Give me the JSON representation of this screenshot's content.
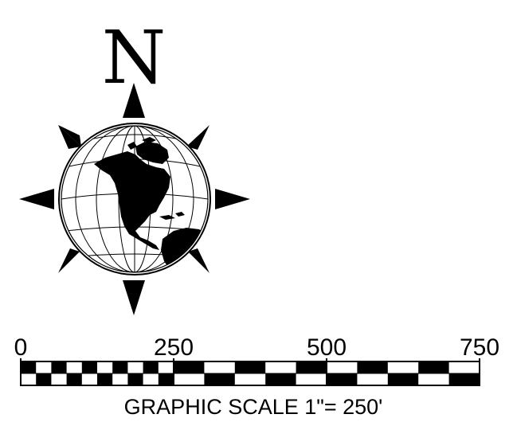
{
  "compass": {
    "north_label": "N",
    "icon": "compass-rose-globe-icon",
    "colors": {
      "ink": "#000000",
      "paper": "#ffffff"
    }
  },
  "scale_bar": {
    "tick_labels": [
      "0",
      "250",
      "500",
      "750"
    ],
    "tick_values": [
      0,
      250,
      500,
      750
    ],
    "caption": "GRAPHIC SCALE 1\"= 250'",
    "first_segment_divisions": 10,
    "remaining_divisions": 10
  }
}
